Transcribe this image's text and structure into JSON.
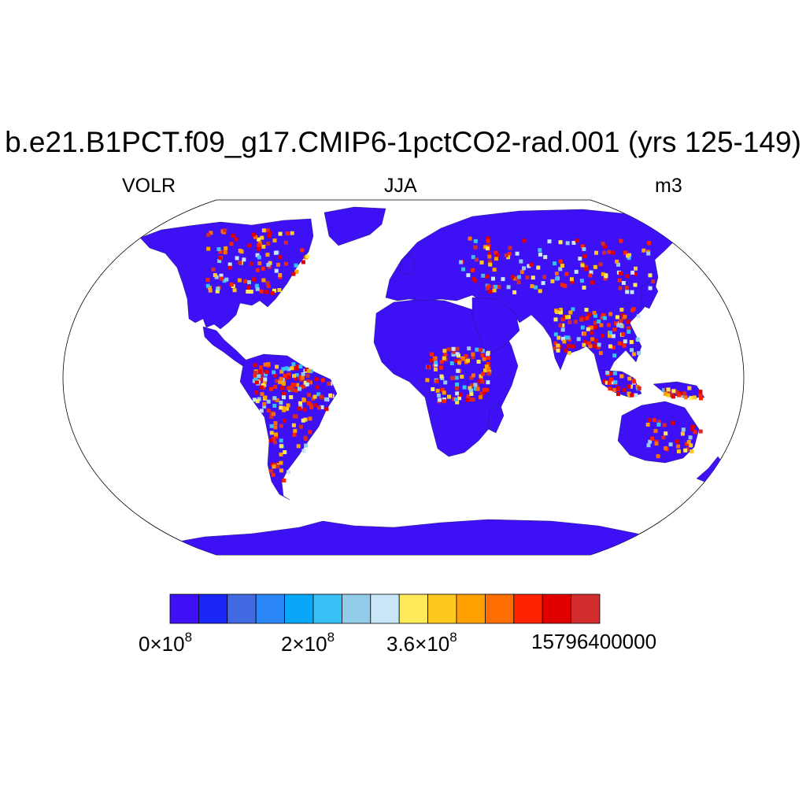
{
  "title": "b.e21.B1PCT.f09_g17.CMIP6-1pctCO2-rad.001 (yrs 125-149)",
  "subtitle_left": "VOLR",
  "subtitle_center": "JJA",
  "subtitle_right": "m3",
  "map": {
    "projection": "Robinson",
    "ocean_color": "#ffffff",
    "land_base_color": "#3e10f5"
  },
  "colorbar": {
    "colors": [
      "#3e10f5",
      "#1a26f5",
      "#4169e1",
      "#2a85f5",
      "#0aa6f7",
      "#39c0f7",
      "#93cce8",
      "#c8e6f8",
      "#ffeb5a",
      "#ffc81e",
      "#ffa000",
      "#ff6e00",
      "#ff2300",
      "#e10000",
      "#d22d2d"
    ],
    "labels": [
      {
        "mantissa": "0",
        "exp": "8"
      },
      {
        "mantissa": "2",
        "exp": "8"
      },
      {
        "mantissa": "3.6",
        "exp": "8"
      },
      {
        "text": "15796400000"
      }
    ]
  }
}
